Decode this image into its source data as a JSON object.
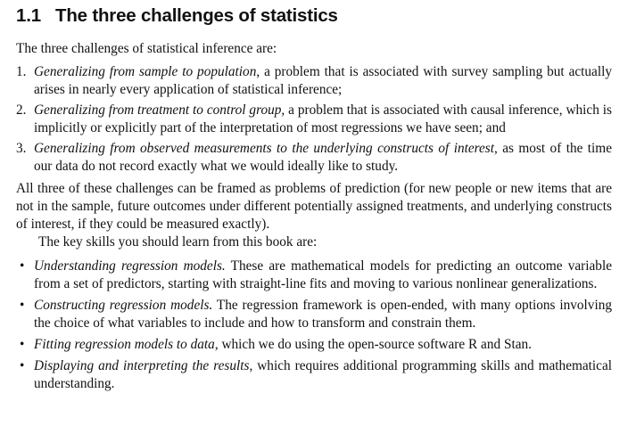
{
  "section": {
    "number": "1.1",
    "title": "The three challenges of statistics"
  },
  "intro": "The three challenges of statistical inference are:",
  "challenges": [
    {
      "marker": "1.",
      "emph": "Generalizing from sample to population",
      "rest": ", a problem that is associated with survey sampling but actually arises in nearly every application of statistical inference;"
    },
    {
      "marker": "2.",
      "emph": "Generalizing from treatment to control group",
      "rest": ", a problem that is associated with causal inference, which is implicitly or explicitly part of the interpretation of most regressions we have seen; and"
    },
    {
      "marker": "3.",
      "emph": "Generalizing from observed measurements to the underlying constructs of interest",
      "rest": ", as most of the time our data do not record exactly what we would ideally like to study."
    }
  ],
  "prediction_paragraph": "All three of these challenges can be framed as problems of prediction (for new people or new items that are not in the sample, future outcomes under different potentially assigned treatments, and underlying constructs of interest, if they could be measured exactly).",
  "skills_intro": "The key skills you should learn from this book are:",
  "skills": [
    {
      "bullet": "•",
      "emph": "Understanding regression models.",
      "rest": " These are mathematical models for predicting an outcome variable from a set of predictors, starting with straight-line fits and moving to various nonlinear generalizations."
    },
    {
      "bullet": "•",
      "emph": "Constructing regression models.",
      "rest": " The regression framework is open-ended, with many options involving the choice of what variables to include and how to transform and constrain them."
    },
    {
      "bullet": "•",
      "emph": "Fitting regression models to data",
      "rest": ", which we do using the open-source software R and Stan."
    },
    {
      "bullet": "•",
      "emph": "Displaying and interpreting the results",
      "rest": ", which requires additional programming skills and mathematical understanding."
    }
  ]
}
